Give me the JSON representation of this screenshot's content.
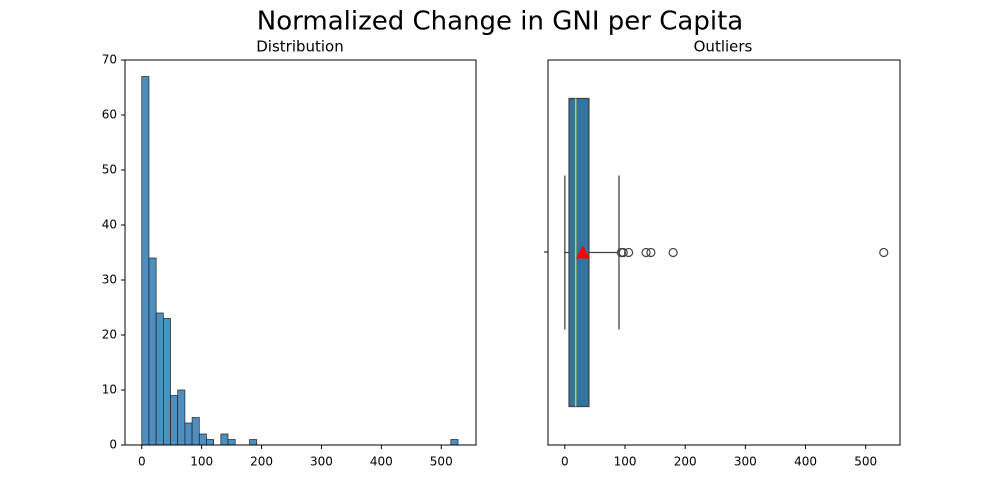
{
  "title": "Normalized Change in GNI per Capita",
  "chart_data": [
    {
      "type": "histogram",
      "title": "Distribution",
      "color": "#4c8fc0",
      "bins": [
        0,
        12,
        24,
        36,
        48,
        60,
        72,
        84,
        96,
        108,
        120,
        132,
        144,
        156,
        168,
        180,
        192,
        204,
        216,
        228,
        240,
        252,
        264,
        276,
        288,
        300,
        312,
        324,
        336,
        348,
        360,
        372,
        384,
        396,
        408,
        420,
        432,
        444,
        456,
        468,
        480,
        492,
        504,
        516,
        528
      ],
      "counts": [
        67,
        34,
        24,
        23,
        9,
        10,
        4,
        5,
        2,
        1,
        0,
        2,
        1,
        0,
        0,
        1,
        0,
        0,
        0,
        0,
        0,
        0,
        0,
        0,
        0,
        0,
        0,
        0,
        0,
        0,
        0,
        0,
        0,
        0,
        0,
        0,
        0,
        0,
        0,
        0,
        0,
        0,
        0,
        1
      ],
      "xlim": [
        -28,
        558
      ],
      "xticks": [
        0,
        100,
        200,
        300,
        400,
        500
      ],
      "ylim": [
        0,
        70
      ],
      "yticks": [
        0,
        10,
        20,
        30,
        40,
        50,
        60,
        70
      ]
    },
    {
      "type": "box",
      "title": "Outliers",
      "color": "#3274a1",
      "median_color": "#c8c83a",
      "mean_color": "#ff0000",
      "min": 0,
      "q1": 7,
      "median": 18,
      "q3": 40,
      "max": 90,
      "mean": 30,
      "outliers": [
        94,
        97,
        106,
        135,
        143,
        180,
        530
      ],
      "xlim": [
        -28,
        557
      ],
      "xticks": [
        0,
        100,
        200,
        300,
        400,
        500
      ]
    }
  ]
}
